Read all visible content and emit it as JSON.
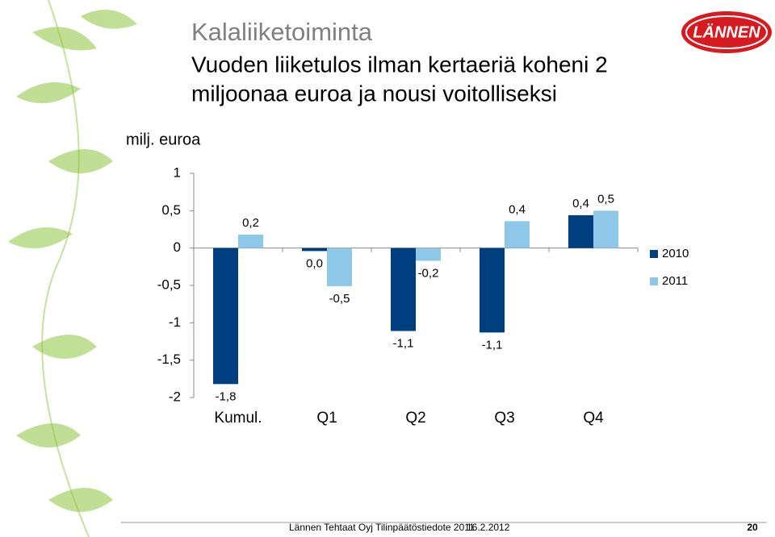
{
  "logo": "LÄNNEN",
  "chart_data": {
    "type": "bar",
    "title": "Kalaliiketoiminta",
    "subtitle": [
      "Vuoden liiketulos ilman kertaeriä koheni 2",
      "miljoonaa euroa ja nousi voitolliseksi"
    ],
    "y_label": "milj. euroa",
    "categories": [
      "Kumul.",
      "Q1",
      "Q2",
      "Q3",
      "Q4"
    ],
    "series": [
      {
        "name": "2010",
        "color": "#003f7f",
        "values": [
          -1.82,
          -0.04,
          -1.11,
          -1.13,
          0.44
        ],
        "value_labels": [
          "-1,8",
          "0,0",
          "-1,1",
          "-1,1",
          "0,4"
        ]
      },
      {
        "name": "2011",
        "color": "#8ec8e8",
        "values": [
          0.18,
          -0.51,
          -0.17,
          0.36,
          0.5
        ],
        "value_labels": [
          "0,2",
          "-0,5",
          "-0,2",
          "0,4",
          "0,5"
        ]
      }
    ],
    "ylim": [
      -2,
      1
    ],
    "yticks": [
      -2,
      {
        "value": -1.5,
        "label": "-1,5"
      },
      -1,
      {
        "value": -0.5,
        "label": "-0,5"
      },
      0,
      {
        "value": 0.5,
        "label": "0,5"
      },
      1
    ],
    "legend": "right"
  },
  "footer": {
    "text": "Lännen Tehtaat Oyj Tilinpäätöstiedote 2011",
    "date": "16.2.2012",
    "page": "20"
  }
}
